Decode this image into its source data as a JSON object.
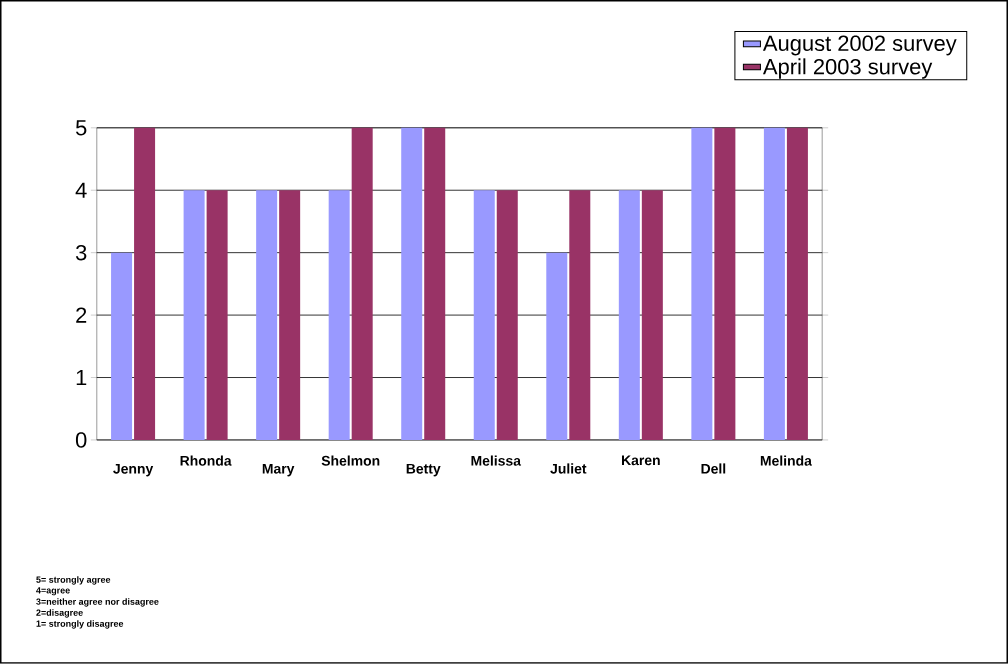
{
  "chart_data": {
    "type": "bar",
    "categories": [
      "Jenny",
      "Rhonda",
      "Mary",
      "Shelmon",
      "Betty",
      "Melissa",
      "Juliet",
      "Karen",
      "Dell",
      "Melinda"
    ],
    "series": [
      {
        "name": "August 2002 survey",
        "color": "#9999ff",
        "values": [
          3,
          4,
          4,
          4,
          5,
          4,
          3,
          4,
          5,
          5
        ]
      },
      {
        "name": "April 2003 survey",
        "color": "#993366",
        "values": [
          5,
          4,
          4,
          5,
          5,
          4,
          4,
          4,
          5,
          5
        ]
      }
    ],
    "ylim": [
      0,
      5
    ],
    "yticks": [
      0,
      1,
      2,
      3,
      4,
      5
    ],
    "grid": "y",
    "legend": "top right",
    "annotations": [
      "5= strongly agree",
      "4=agree",
      "3=neither agree nor disagree",
      "2=disagree",
      "1= strongly disagree"
    ]
  }
}
